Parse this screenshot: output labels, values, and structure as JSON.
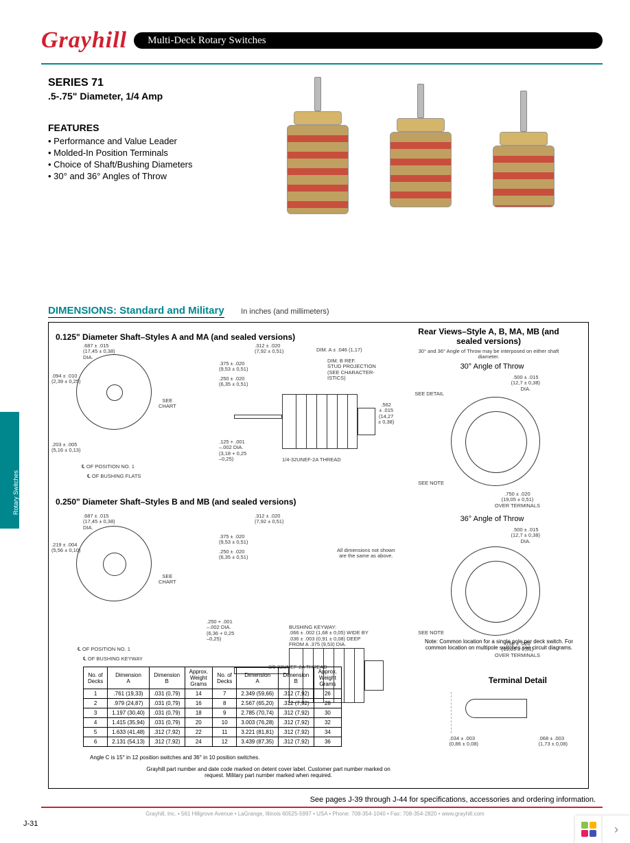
{
  "header": {
    "logo_text": "Grayhill",
    "pill_text": "Multi-Deck Rotary Switches"
  },
  "series": {
    "title": "SERIES 71",
    "subtitle": ".5-.75\" Diameter, 1/4 Amp"
  },
  "features": {
    "title": "FEATURES",
    "items": [
      "Performance and Value Leader",
      "Molded-In Position Terminals",
      "Choice of Shaft/Bushing Diameters",
      "30° and 36° Angles of Throw"
    ]
  },
  "dimensions": {
    "title": "DIMENSIONS: Standard and Military",
    "unit_note": "In inches (and millimeters)",
    "section_a_title": "0.125\" Diameter Shaft–Styles A and MA (and sealed versions)",
    "section_b_title": "0.250\" Diameter Shaft–Styles B and MB (and sealed versions)",
    "rear_title": "Rear Views–Style A, B, MA, MB (and sealed versions)",
    "rear_sub": "30° and 36° Angle of Throw may be interposed on either shaft diameter.",
    "angle_30": "30° Angle of Throw",
    "angle_36": "36° Angle of Throw",
    "rear_common_note": "Note: Common location for a single pole per deck switch. For common location on multipole switches see circuit diagrams.",
    "terminal_title": "Terminal Detail",
    "callouts_a": {
      "dia1": ".687 ± .015\n(17,45 ± 0,38)\nDIA.",
      "dia2": ".094 ± .010\n(2,39 ± 0,25)",
      "dia3": ".203 ± .005\n(5,16 ± 0,13)",
      "see_chart": "SEE\nCHART",
      "pos1": "℄ OF POSITION NO. 1",
      "bushing": "℄ OF BUSHING FLATS",
      "d312": ".312 ± .020\n(7,92 ± 0,51)",
      "d375": ".375 ± .020\n(9,53 ± 0,51)",
      "d250": ".250 ± .020\n(6,35 ± 0,51)",
      "d125": ".125 + .001\n–.002 DIA.\n(3,18 + 0,25\n–0,25)",
      "thread": "1/4-32UNEF-2A THREAD",
      "dimA": "DIM. A ± .046 (1,17)",
      "dimB": "DIM. B REF.\nSTUD PROJECTION\n(SEE CHARACTER-\nISTICS)",
      "body_dia": ".562\n± .015\n(14,27\n± 0,38)"
    },
    "callouts_b": {
      "dia1": ".687 ± .015\n(17,45 ± 0,38)\nDIA.",
      "dia2": ".219 ± .004\n(5,56 ± 0,10)",
      "see_chart": "SEE\nCHART",
      "pos1": "℄ OF POSITION NO. 1",
      "bushing": "℄ OF BUSHING KEYWAY",
      "d312": ".312 ± .020\n(7,92 ± 0,51)",
      "d375": ".375 ± .020\n(9,53 ± 0,51)",
      "d250": ".250 ± .020\n(6,35 ± 0,51)",
      "d250s": ".250 + .001\n–.002 DIA.\n(6,36 + 0,25\n–0,25)",
      "same_note": "All dimensions not shown\nare the same as above.",
      "keyway": "BUSHING KEYWAY:\n.066 ± .002 (1,68 ± 0,05) WIDE BY\n.036 ± .003 (0,91 ± 0,08) DEEP\nFROM A .375 (9,53) DIA.",
      "thread": "3/8-32UNEF-2A THREAD"
    },
    "rear_callouts": {
      "top_dia": ".500 ± .015\n(12,7 ± 0,38)\nDIA.",
      "see_detail": "SEE DETAIL",
      "see_note": "SEE NOTE",
      "bot_dim": ".750 ± .020\n(19,05 ± 0,51)\nOVER TERMINALS"
    },
    "terminal_callouts": {
      "left": ".034 ± .003\n(0,86 ± 0,08)",
      "right": ".068 ± .003\n(1,73 ± 0,08)"
    }
  },
  "deck_table": {
    "headers": [
      "No. of\nDecks",
      "Dimension\nA",
      "Dimension\nB",
      "Approx.\nWeight\nGrams",
      "No. of\nDecks",
      "Dimension\nA",
      "Dimension\nB",
      "Approx.\nWeight\nGrams"
    ],
    "rows": [
      [
        "1",
        ".761 (19,33)",
        ".031 (0,79)",
        "14",
        "7",
        "2.349 (59,66)",
        ".312 (7,92)",
        "26"
      ],
      [
        "2",
        ".979 (24,87)",
        ".031 (0,79)",
        "16",
        "8",
        "2.567 (65,20)",
        ".312 (7,92)",
        "28"
      ],
      [
        "3",
        "1.197 (30,40)",
        ".031 (0,79)",
        "18",
        "9",
        "2.785 (70,74)",
        ".312 (7,92)",
        "30"
      ],
      [
        "4",
        "1.415 (35,94)",
        ".031 (0,79)",
        "20",
        "10",
        "3.003 (76,28)",
        ".312 (7,92)",
        "32"
      ],
      [
        "5",
        "1.633 (41,48)",
        ".312 (7,92)",
        "22",
        "11",
        "3.221 (81,81)",
        ".312 (7,92)",
        "34"
      ],
      [
        "6",
        "2.131 (54,13)",
        ".312 (7,92)",
        "24",
        "12",
        "3.439 (87,35)",
        ".312 (7,92)",
        "36"
      ]
    ],
    "note1": "Angle C is 15° in 12 position switches and 36° in 10 position switches.",
    "note2": "Grayhill part number and date code marked on detent cover label. Customer part number marked on request. Military part number marked when required."
  },
  "footer": {
    "see_pages": "See pages J-39 through J-44 for specifications, accessories and ordering information.",
    "page_num": "J-31",
    "company_line": "Grayhill, Inc. • 561 Hillgrove Avenue • LaGrange, Illinois 60525-5997 • USA • Phone: 708-354-1040 • Fax: 708-354-2820 • www.grayhill.com"
  },
  "side_tab": "Rotary  Switches",
  "colors": {
    "teal": "#00878e",
    "red": "#d11f2f"
  }
}
